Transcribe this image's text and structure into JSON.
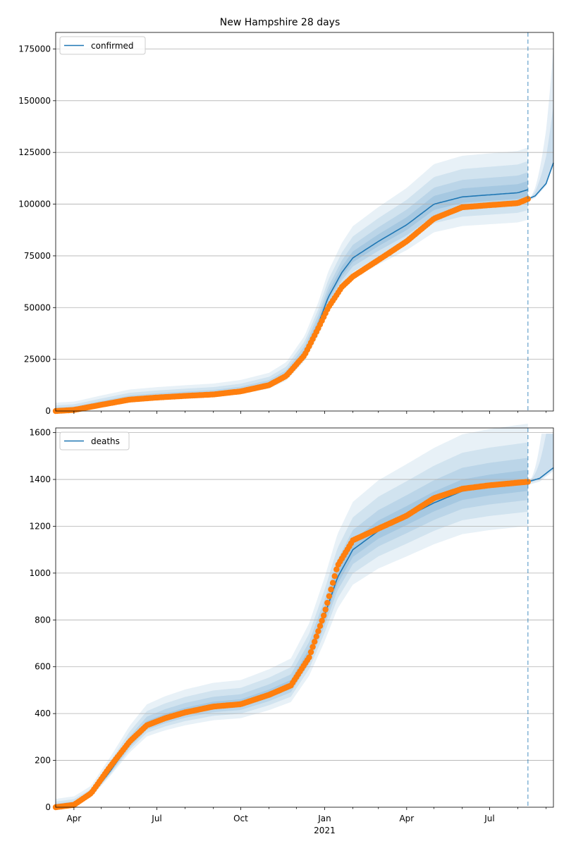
{
  "chart_data": [
    {
      "type": "line",
      "title": "New Hampshire 28 days",
      "ylim": [
        0,
        183000
      ],
      "yticks": [
        0,
        25000,
        50000,
        75000,
        100000,
        125000,
        150000,
        175000
      ],
      "legend": {
        "label": "confirmed",
        "placement": "top-left"
      },
      "grid": "horizontal",
      "fit_knots": {
        "x": [
          "2020-03-12",
          "2020-04-01",
          "2020-05-01",
          "2020-06-01",
          "2020-07-01",
          "2020-08-01",
          "2020-09-01",
          "2020-10-01",
          "2020-11-01",
          "2020-11-20",
          "2020-12-10",
          "2020-12-25",
          "2021-01-05",
          "2021-01-20",
          "2021-02-01",
          "2021-03-01",
          "2021-04-01",
          "2021-05-01",
          "2021-06-01",
          "2021-07-01",
          "2021-08-01",
          "2021-08-12"
        ],
        "y": [
          0,
          500,
          3000,
          5500,
          6500,
          7300,
          8000,
          9500,
          12500,
          17000,
          28000,
          42000,
          55000,
          67000,
          74000,
          82000,
          90000,
          100000,
          103500,
          104500,
          105500,
          107000
        ]
      },
      "observed_knots": {
        "x": [
          "2020-03-12",
          "2020-04-01",
          "2020-05-01",
          "2020-06-01",
          "2020-07-01",
          "2020-08-01",
          "2020-09-01",
          "2020-10-01",
          "2020-11-01",
          "2020-11-20",
          "2020-12-10",
          "2020-12-25",
          "2021-01-05",
          "2021-01-20",
          "2021-02-01",
          "2021-03-01",
          "2021-04-01",
          "2021-05-01",
          "2021-06-01",
          "2021-07-01",
          "2021-08-01",
          "2021-08-12"
        ],
        "y": [
          0,
          500,
          3000,
          5500,
          6500,
          7300,
          8000,
          9500,
          12500,
          17000,
          27000,
          40000,
          50000,
          60000,
          65000,
          73000,
          82000,
          93000,
          98500,
          99500,
          100500,
          102500
        ]
      },
      "forecast_knots": {
        "x": [
          "2021-08-12",
          "2021-08-20",
          "2021-09-01",
          "2021-09-09"
        ],
        "y": [
          102500,
          104000,
          110000,
          120000
        ]
      },
      "forecast_cutoff": "2021-08-12"
    },
    {
      "type": "line",
      "ylim": [
        0,
        1620
      ],
      "yticks": [
        0,
        200,
        400,
        600,
        800,
        1000,
        1200,
        1400,
        1600
      ],
      "legend": {
        "label": "deaths",
        "placement": "top-left"
      },
      "grid": "horizontal",
      "xticks": [
        {
          "date": "2020-04-01",
          "label": "Apr"
        },
        {
          "date": "2020-07-01",
          "label": "Jul"
        },
        {
          "date": "2020-10-01",
          "label": "Oct"
        },
        {
          "date": "2021-01-01",
          "label": "Jan"
        },
        {
          "date": "2021-04-01",
          "label": "Apr"
        },
        {
          "date": "2021-07-01",
          "label": "Jul"
        }
      ],
      "xlabel_year": "2021",
      "fit_knots": {
        "x": [
          "2020-03-12",
          "2020-04-01",
          "2020-04-20",
          "2020-05-10",
          "2020-06-01",
          "2020-06-20",
          "2020-07-10",
          "2020-08-01",
          "2020-09-01",
          "2020-10-01",
          "2020-11-01",
          "2020-11-25",
          "2020-12-15",
          "2021-01-01",
          "2021-01-15",
          "2021-02-01",
          "2021-03-01",
          "2021-04-01",
          "2021-05-01",
          "2021-06-01",
          "2021-07-01",
          "2021-08-12"
        ],
        "y": [
          0,
          10,
          50,
          150,
          270,
          350,
          380,
          405,
          430,
          440,
          480,
          520,
          650,
          820,
          980,
          1100,
          1180,
          1240,
          1300,
          1350,
          1370,
          1390
        ]
      },
      "observed_knots": {
        "x": [
          "2020-03-12",
          "2020-04-01",
          "2020-04-20",
          "2020-05-10",
          "2020-06-01",
          "2020-06-20",
          "2020-07-10",
          "2020-08-01",
          "2020-09-01",
          "2020-10-01",
          "2020-11-01",
          "2020-11-25",
          "2020-12-15",
          "2021-01-01",
          "2021-01-15",
          "2021-02-01",
          "2021-03-01",
          "2021-04-01",
          "2021-05-01",
          "2021-06-01",
          "2021-07-01",
          "2021-08-12"
        ],
        "y": [
          0,
          10,
          60,
          170,
          280,
          350,
          380,
          405,
          430,
          440,
          480,
          520,
          640,
          830,
          1030,
          1140,
          1190,
          1245,
          1320,
          1360,
          1375,
          1390
        ]
      },
      "forecast_knots": {
        "x": [
          "2021-08-12",
          "2021-08-25",
          "2021-09-09"
        ],
        "y": [
          1390,
          1405,
          1450
        ]
      },
      "forecast_cutoff": "2021-08-12"
    }
  ]
}
